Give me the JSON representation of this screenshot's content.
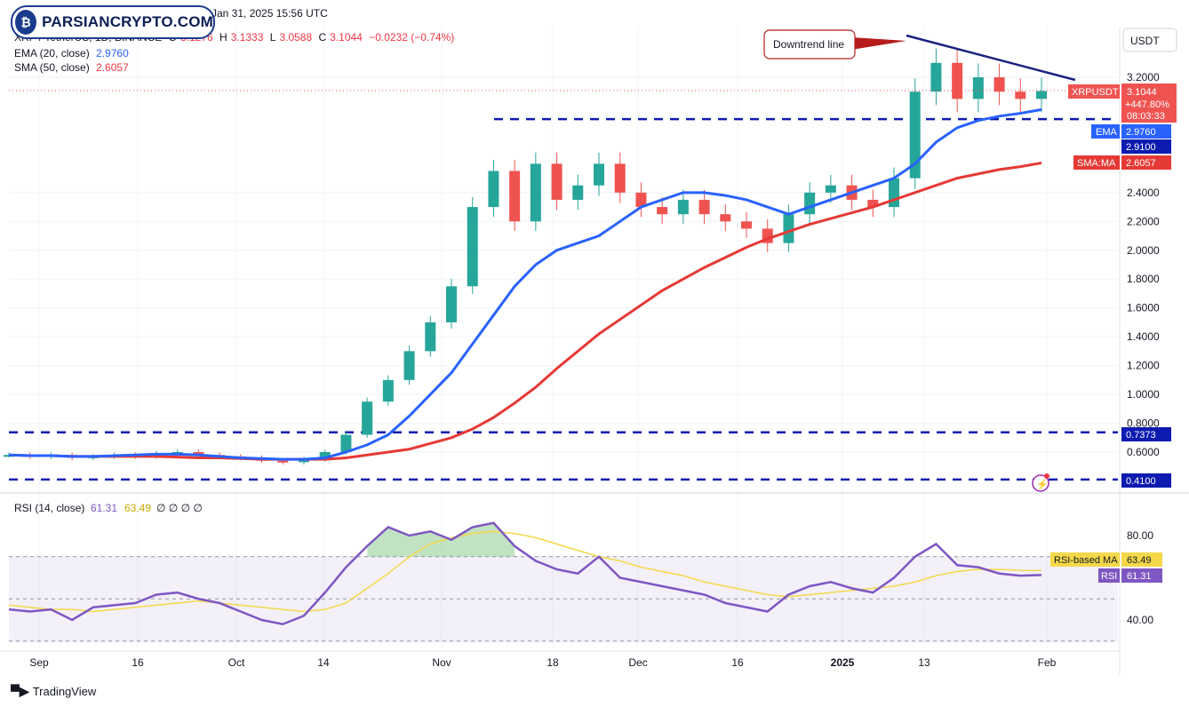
{
  "header": {
    "title_suffix": "Jan 31, 2025 15:56 UTC",
    "symbol": "XRP / TetherUS, 1D, BINANCE",
    "o_label": "O",
    "o_value": "3.1276",
    "h_label": "H",
    "h_value": "3.1333",
    "l_label": "L",
    "l_value": "3.0588",
    "c_label": "C",
    "c_value": "3.1044",
    "change": "−0.0232 (−0.74%)",
    "ema_label": "EMA (20, close)",
    "ema_value": "2.9760",
    "sma_label": "SMA (50, close)",
    "sma_value": "2.6057"
  },
  "watermark": {
    "logo_text": "PARSIANCRYPTO.COM"
  },
  "annotation": {
    "downtrend_label": "Downtrend line"
  },
  "price_axis": {
    "currency": "USDT",
    "ticks": [
      "3.2000",
      "2.4000",
      "2.2000",
      "2.0000",
      "1.8000",
      "1.6000",
      "1.4000",
      "1.2000",
      "1.0000",
      "0.8000",
      "0.6000"
    ],
    "tick_values": [
      3.2,
      2.4,
      2.2,
      2.0,
      1.8,
      1.6,
      1.4,
      1.2,
      1.0,
      0.8,
      0.6
    ],
    "labels": {
      "symbol_tag": "XRPUSDT",
      "price": "3.1044",
      "change_pct": "+447.80%",
      "countdown": "08:03:33",
      "ema_tag": "EMA",
      "ema_value": "2.9760",
      "level_2910": "2.9100",
      "sma_tag": "SMA:MA",
      "sma_value": "2.6057",
      "level_0737": "0.7373",
      "level_0410": "0.4100"
    }
  },
  "rsi": {
    "label": "RSI (14, close)",
    "rsi_value": "61.31",
    "ma_value": "63.49",
    "zeros": "∅ ∅ ∅ ∅",
    "ticks": [
      "80.00",
      "40.00"
    ],
    "ma_tag": "RSI-based MA",
    "ma_tag_value": "63.49",
    "rsi_tag": "RSI",
    "rsi_tag_value": "61.31"
  },
  "time_axis": {
    "labels": [
      "Sep",
      "16",
      "Oct",
      "14",
      "Nov",
      "18",
      "Dec",
      "16",
      "2025",
      "13",
      "Feb"
    ]
  },
  "footer": {
    "brand": "TradingView"
  },
  "colors": {
    "up": "#26a69a",
    "down": "#ef5350",
    "ema": "#2962ff",
    "sma": "#e53935",
    "rsi": "#7e57c2",
    "rsi_ma": "#f5d84a",
    "level": "#0d1bb0"
  },
  "chart_data": {
    "type": "candlestick",
    "symbol": "XRP / TetherUS",
    "timeframe": "1D",
    "exchange": "BINANCE",
    "ohlc_last": {
      "open": 3.1276,
      "high": 3.1333,
      "low": 3.0588,
      "close": 3.1044
    },
    "horizontal_levels": [
      2.91,
      0.7373,
      0.41
    ],
    "indicators": {
      "ema20": [
        0.58,
        0.575,
        0.575,
        0.57,
        0.57,
        0.575,
        0.58,
        0.585,
        0.585,
        0.58,
        0.57,
        0.56,
        0.555,
        0.55,
        0.55,
        0.56,
        0.6,
        0.65,
        0.72,
        0.85,
        1.0,
        1.15,
        1.35,
        1.55,
        1.75,
        1.9,
        2.0,
        2.05,
        2.1,
        2.2,
        2.3,
        2.35,
        2.4,
        2.4,
        2.38,
        2.35,
        2.3,
        2.25,
        2.3,
        2.35,
        2.4,
        2.45,
        2.5,
        2.6,
        2.75,
        2.85,
        2.9,
        2.93,
        2.95,
        2.976
      ],
      "sma50": [
        0.58,
        0.575,
        0.575,
        0.57,
        0.57,
        0.57,
        0.57,
        0.57,
        0.565,
        0.56,
        0.56,
        0.555,
        0.55,
        0.55,
        0.55,
        0.55,
        0.56,
        0.58,
        0.6,
        0.62,
        0.66,
        0.7,
        0.76,
        0.84,
        0.94,
        1.05,
        1.18,
        1.3,
        1.42,
        1.52,
        1.62,
        1.72,
        1.8,
        1.88,
        1.95,
        2.02,
        2.08,
        2.13,
        2.18,
        2.22,
        2.26,
        2.3,
        2.35,
        2.4,
        2.45,
        2.5,
        2.53,
        2.56,
        2.58,
        2.6057
      ]
    },
    "rsi": {
      "period": 14,
      "last": 61.31,
      "ma_last": 63.49
    }
  }
}
